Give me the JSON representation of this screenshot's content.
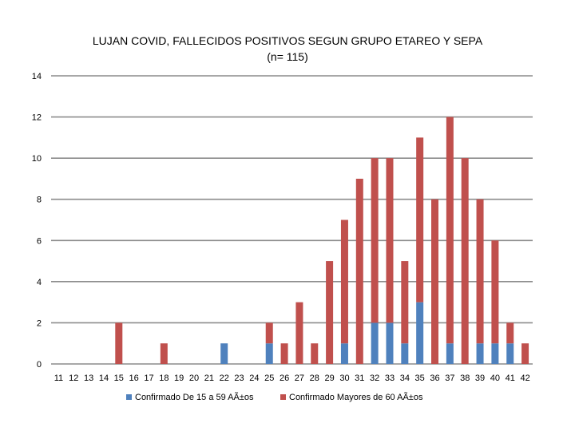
{
  "chart_data": {
    "type": "bar",
    "stacked": true,
    "title": "LUJAN COVID, FALLECIDOS POSITIVOS  SEGUN GRUPO ETAREO Y SEPA",
    "subtitle": "(n= 115)",
    "xlabel": "",
    "ylabel": "",
    "ylim": [
      0,
      14
    ],
    "yticks": [
      0,
      2,
      4,
      6,
      8,
      10,
      12,
      14
    ],
    "grid": true,
    "legend_position": "bottom",
    "categories": [
      "11",
      "12",
      "13",
      "14",
      "15",
      "16",
      "17",
      "18",
      "19",
      "20",
      "21",
      "22",
      "23",
      "24",
      "25",
      "26",
      "27",
      "28",
      "29",
      "30",
      "31",
      "32",
      "33",
      "34",
      "35",
      "36",
      "37",
      "38",
      "39",
      "40",
      "41",
      "42"
    ],
    "series": [
      {
        "name": "Confirmado De 15 a 59 AÃ±os",
        "color": "#4f81bd",
        "values": [
          0,
          0,
          0,
          0,
          0,
          0,
          0,
          0,
          0,
          0,
          0,
          1,
          0,
          0,
          1,
          0,
          0,
          0,
          0,
          1,
          0,
          2,
          2,
          1,
          3,
          0,
          1,
          0,
          1,
          1,
          1,
          0
        ]
      },
      {
        "name": "Confirmado Mayores de 60 AÃ±os",
        "color": "#c0504d",
        "values": [
          0,
          0,
          0,
          0,
          2,
          0,
          0,
          1,
          0,
          0,
          0,
          0,
          0,
          0,
          1,
          1,
          3,
          1,
          5,
          6,
          9,
          8,
          8,
          4,
          8,
          8,
          11,
          10,
          7,
          5,
          1,
          1
        ]
      }
    ]
  }
}
